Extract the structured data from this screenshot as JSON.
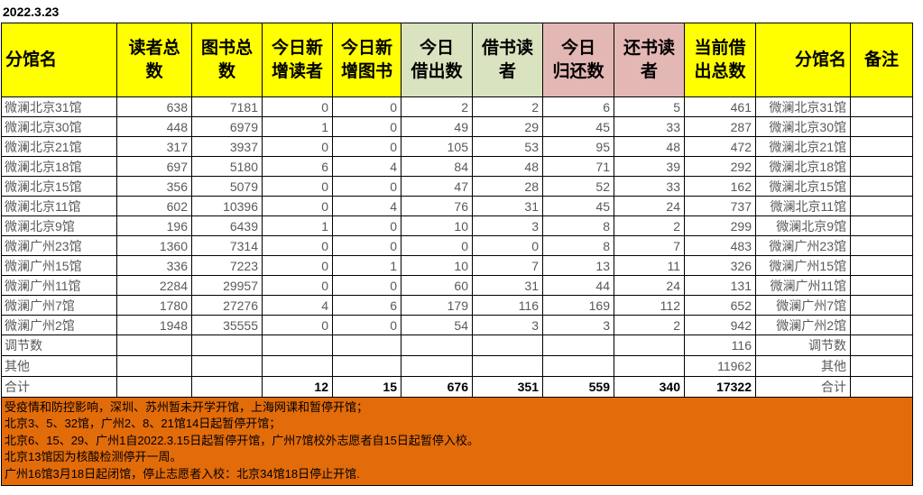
{
  "date": "2022.3.23",
  "colors": {
    "header_yellow": "#FFFF00",
    "header_green": "#D9E3BF",
    "header_pink": "#E3B7B4",
    "footer_orange": "#E26B0A",
    "grid_border": "#000000",
    "data_text": "#595959",
    "totals_text": "#000000"
  },
  "table": {
    "headers": [
      {
        "label": "分馆名"
      },
      {
        "label": "读者总\n数"
      },
      {
        "label": "图书总\n数"
      },
      {
        "label": "今日新\n增读者"
      },
      {
        "label": "今日新\n增图书"
      },
      {
        "label": "今日\n借出数"
      },
      {
        "label": "借书读\n者"
      },
      {
        "label": "今日\n归还数"
      },
      {
        "label": "还书读\n者"
      },
      {
        "label": "当前借\n出总数"
      },
      {
        "label": "分馆名"
      },
      {
        "label": "备注"
      }
    ],
    "rows": [
      {
        "name": "微澜北京31馆",
        "values": [
          "638",
          "7181",
          "0",
          "0",
          "2",
          "2",
          "6",
          "5",
          "461"
        ],
        "name_right": "微澜北京31馆",
        "note": ""
      },
      {
        "name": "微澜北京30馆",
        "values": [
          "448",
          "6979",
          "1",
          "0",
          "49",
          "29",
          "45",
          "33",
          "287"
        ],
        "name_right": "微澜北京30馆",
        "note": ""
      },
      {
        "name": "微澜北京21馆",
        "values": [
          "317",
          "3937",
          "0",
          "0",
          "105",
          "53",
          "95",
          "48",
          "472"
        ],
        "name_right": "微澜北京21馆",
        "note": ""
      },
      {
        "name": "微澜北京18馆",
        "values": [
          "697",
          "5180",
          "6",
          "4",
          "84",
          "48",
          "71",
          "39",
          "292"
        ],
        "name_right": "微澜北京18馆",
        "note": ""
      },
      {
        "name": "微澜北京15馆",
        "values": [
          "356",
          "5079",
          "0",
          "0",
          "47",
          "28",
          "52",
          "33",
          "162"
        ],
        "name_right": "微澜北京15馆",
        "note": ""
      },
      {
        "name": "微澜北京11馆",
        "values": [
          "602",
          "10396",
          "0",
          "4",
          "76",
          "31",
          "45",
          "24",
          "737"
        ],
        "name_right": "微澜北京11馆",
        "note": ""
      },
      {
        "name": "微澜北京9馆",
        "values": [
          "196",
          "6439",
          "1",
          "0",
          "10",
          "3",
          "8",
          "2",
          "299"
        ],
        "name_right": "微澜北京9馆",
        "note": ""
      },
      {
        "name": "微澜广州23馆",
        "values": [
          "1360",
          "7314",
          "0",
          "0",
          "0",
          "0",
          "8",
          "7",
          "483"
        ],
        "name_right": "微澜广州23馆",
        "note": ""
      },
      {
        "name": "微澜广州15馆",
        "values": [
          "336",
          "7223",
          "0",
          "1",
          "10",
          "7",
          "13",
          "11",
          "326"
        ],
        "name_right": "微澜广州15馆",
        "note": ""
      },
      {
        "name": "微澜广州11馆",
        "values": [
          "2284",
          "29957",
          "0",
          "0",
          "60",
          "31",
          "44",
          "24",
          "131"
        ],
        "name_right": "微澜广州11馆",
        "note": ""
      },
      {
        "name": "微澜广州7馆",
        "values": [
          "1780",
          "27276",
          "4",
          "6",
          "179",
          "116",
          "169",
          "112",
          "652"
        ],
        "name_right": "微澜广州7馆",
        "note": ""
      },
      {
        "name": "微澜广州2馆",
        "values": [
          "1948",
          "35555",
          "0",
          "0",
          "54",
          "3",
          "3",
          "2",
          "942"
        ],
        "name_right": "微澜广州2馆",
        "note": ""
      }
    ],
    "summary_rows": [
      {
        "name": "调节数",
        "values": [
          "",
          "",
          "",
          "",
          "",
          "",
          "",
          "",
          "116"
        ],
        "name_right": "调节数",
        "note": "",
        "summary": true
      },
      {
        "name": "其他",
        "values": [
          "",
          "",
          "",
          "",
          "",
          "",
          "",
          "",
          "11962"
        ],
        "name_right": "其他",
        "note": "",
        "summary": true
      },
      {
        "name": "合计",
        "values": [
          "",
          "",
          "12",
          "15",
          "676",
          "351",
          "559",
          "340",
          "17322"
        ],
        "name_right": "合计",
        "note": "",
        "summary": true,
        "bold_values": true
      }
    ]
  },
  "footer": {
    "lines": [
      "受疫情和防控影响，深圳、苏州暂未开学开馆，上海网课和暂停开馆；",
      "北京3、5、32馆，广州2、8、21馆14日起暂停开馆；",
      "北京6、15、29、广州1自2022.3.15日起暂停开馆，广州7馆校外志愿者自15日起暂停入校。",
      "北京13馆因为核酸检测停开一周。",
      "广州16馆3月18日起闭馆，停止志愿者入校：北京34馆18日停止开馆."
    ]
  }
}
